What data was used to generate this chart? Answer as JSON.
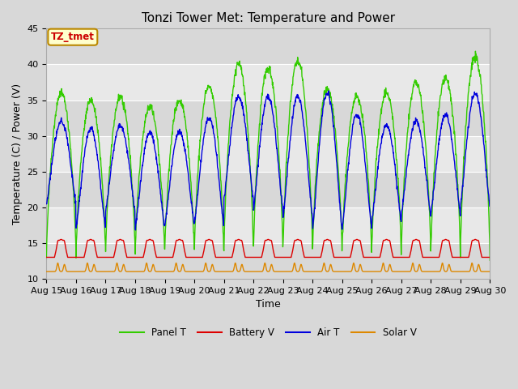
{
  "title": "Tonzi Tower Met: Temperature and Power",
  "xlabel": "Time",
  "ylabel": "Temperature (C) / Power (V)",
  "ylim": [
    10,
    45
  ],
  "n_days": 15,
  "x_tick_labels": [
    "Aug 15",
    "Aug 16",
    "Aug 17",
    "Aug 18",
    "Aug 19",
    "Aug 20",
    "Aug 21",
    "Aug 22",
    "Aug 23",
    "Aug 24",
    "Aug 25",
    "Aug 26",
    "Aug 27",
    "Aug 28",
    "Aug 29",
    "Aug 30"
  ],
  "annotation_text": "TZ_tmet",
  "annotation_color": "#cc0000",
  "annotation_bg": "#ffffcc",
  "annotation_border": "#bb8800",
  "colors": {
    "panel_t": "#33cc00",
    "battery_v": "#dd0000",
    "air_t": "#0000dd",
    "solar_v": "#dd8800"
  },
  "legend_labels": [
    "Panel T",
    "Battery V",
    "Air T",
    "Solar V"
  ],
  "fig_facecolor": "#d8d8d8",
  "plot_facecolor": "#e8e8e8",
  "grid_color": "#ffffff",
  "title_fontsize": 11,
  "axis_fontsize": 9,
  "tick_fontsize": 8,
  "linewidth": 1.0
}
